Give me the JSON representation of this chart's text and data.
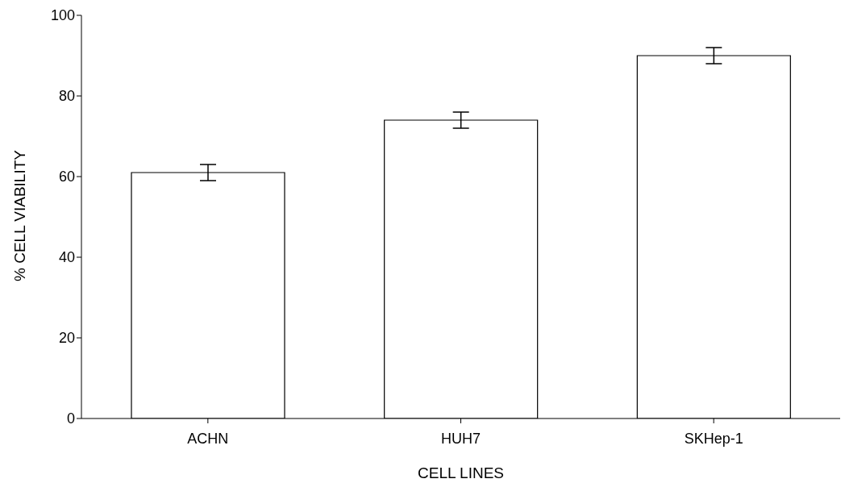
{
  "chart_data": {
    "type": "bar",
    "xlabel": "CELL LINES",
    "ylabel": "% CELL VIABILITY",
    "categories": [
      "ACHN",
      "HUH7",
      "SKHep-1"
    ],
    "values": [
      61,
      74,
      90
    ],
    "errors": [
      2,
      2,
      2
    ],
    "color": "#ffffff",
    "ylim": [
      0,
      100
    ],
    "yticks": [
      0,
      20,
      40,
      60,
      80,
      100
    ],
    "grid": false,
    "legend": false
  }
}
